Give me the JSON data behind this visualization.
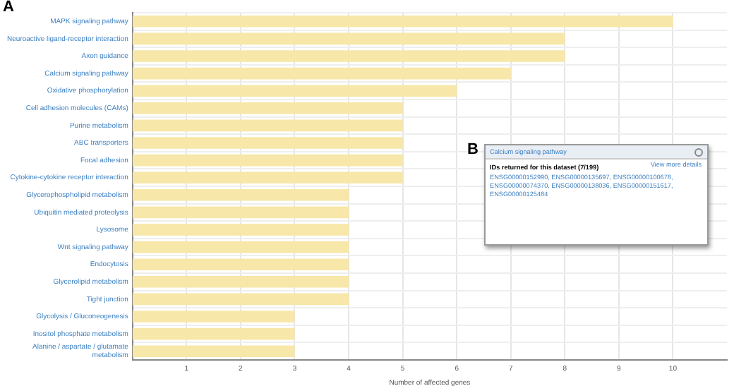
{
  "chart_data": {
    "type": "bar",
    "orientation": "horizontal",
    "xlabel": "Number of affected genes",
    "categories": [
      "MAPK signaling pathway",
      "Neuroactive ligand-receptor interaction",
      "Axon guidance",
      "Calcium signaling pathway",
      "Oxidative phosphorylation",
      "Cell adhesion molecules (CAMs)",
      "Purine metabolism",
      "ABC transporters",
      "Focal adhesion",
      "Cytokine-cytokine receptor interaction",
      "Glycerophospholipid metabolism",
      "Ubiquitin mediated proteolysis",
      "Lysosome",
      "Wnt signaling pathway",
      "Endocytosis",
      "Glycerolipid metabolism",
      "Tight junction",
      "Glycolysis / Gluconeogenesis",
      "Inositol phosphate metabolism",
      "Alanine / aspartate / glutamate metabolism"
    ],
    "values": [
      10,
      8,
      8,
      7,
      6,
      5,
      5,
      5,
      5,
      5,
      4,
      4,
      4,
      4,
      4,
      4,
      4,
      3,
      3,
      3
    ],
    "color": "#f7e7a8",
    "xlim": [
      0,
      11
    ],
    "xticks": [
      1,
      2,
      3,
      4,
      5,
      6,
      7,
      8,
      9,
      10
    ],
    "grid": true,
    "legend": false,
    "annotations": [
      "A",
      "B",
      "Calcium signaling pathway",
      "IDs returned for this dataset (7/199)",
      "View more details",
      "ENSG00000152990, ENSG00000135697, ENSG00000100678, ENSG00000074370, ENSG00000138036, ENSG00000151617, ENSG00000125484"
    ]
  }
}
